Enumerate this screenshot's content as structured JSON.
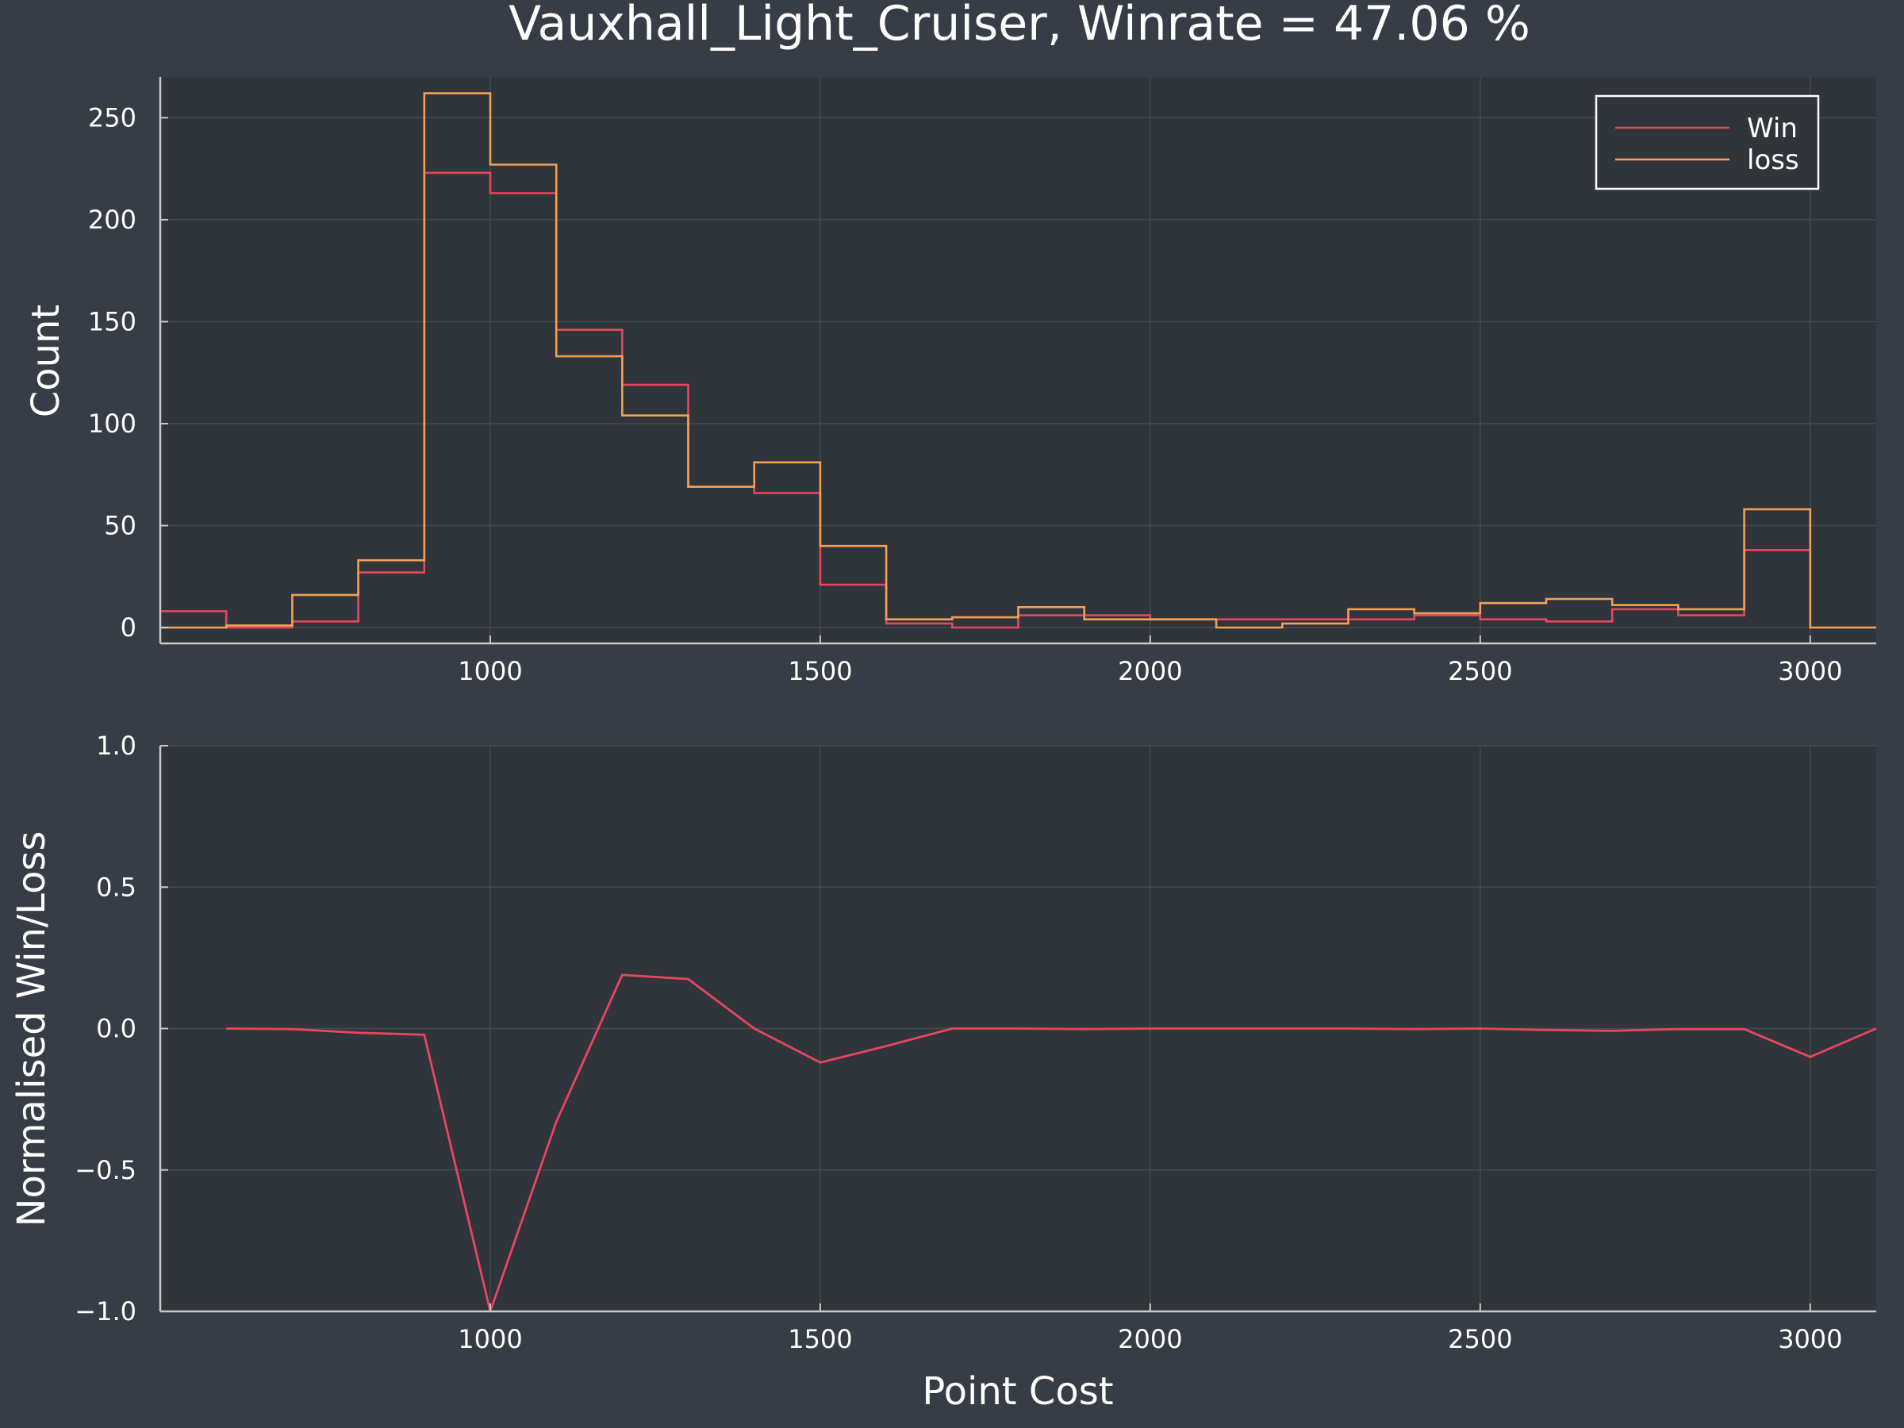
{
  "chart_data": [
    {
      "type": "histogram",
      "title": "Vauxhall_Light_Cruiser, Winrate = 47.06 %",
      "xlabel": "",
      "ylabel": "Count",
      "xlim": [
        500,
        3100
      ],
      "ylim": [
        0,
        270
      ],
      "xticks": [
        1000,
        1500,
        2000,
        2500,
        3000
      ],
      "yticks": [
        0,
        50,
        100,
        150,
        200,
        250
      ],
      "grid": true,
      "legend_position": "top-right",
      "bin_edges": [
        500,
        600,
        700,
        800,
        900,
        1000,
        1100,
        1200,
        1300,
        1400,
        1500,
        1600,
        1700,
        1800,
        1900,
        2000,
        2100,
        2200,
        2300,
        2400,
        2500,
        2600,
        2700,
        2800,
        2900,
        3000,
        3100
      ],
      "series": [
        {
          "name": "Win",
          "color": "#e8465f",
          "values": [
            8,
            0,
            3,
            27,
            223,
            213,
            146,
            119,
            69,
            66,
            21,
            2,
            0,
            6,
            6,
            4,
            4,
            4,
            4,
            6,
            4,
            3,
            9,
            6,
            38,
            0
          ]
        },
        {
          "name": "loss",
          "color": "#f2a154",
          "values": [
            0,
            1,
            16,
            33,
            262,
            227,
            133,
            104,
            69,
            81,
            40,
            4,
            5,
            10,
            4,
            4,
            0,
            2,
            9,
            7,
            12,
            14,
            11,
            9,
            58,
            0
          ]
        }
      ]
    },
    {
      "type": "line",
      "title": "",
      "xlabel": "Point Cost",
      "ylabel": "Normalised Win/Loss",
      "xlim": [
        500,
        3100
      ],
      "ylim": [
        -1.0,
        1.0
      ],
      "xticks": [
        1000,
        1500,
        2000,
        2500,
        3000
      ],
      "yticks": [
        -1.0,
        -0.5,
        0.0,
        0.5,
        1.0
      ],
      "ytick_labels": [
        "−1.0",
        "−0.5",
        "0.0",
        "0.5",
        "1.0"
      ],
      "grid": true,
      "series": [
        {
          "color": "#e8465f",
          "x": [
            600,
            700,
            800,
            900,
            1000,
            1100,
            1200,
            1300,
            1400,
            1500,
            1600,
            1700,
            1800,
            1900,
            2000,
            2100,
            2200,
            2300,
            2400,
            2500,
            2600,
            2700,
            2800,
            2900,
            3000,
            3100
          ],
          "y": [
            0.0,
            -0.002,
            -0.015,
            -0.022,
            -1.0,
            -0.33,
            0.19,
            0.175,
            0.0,
            -0.12,
            -0.062,
            0.0,
            0.0,
            -0.002,
            0.0,
            0.0,
            0.0,
            0.0,
            -0.002,
            0.0,
            -0.005,
            -0.008,
            -0.002,
            -0.002,
            -0.1,
            0.0
          ]
        }
      ]
    }
  ],
  "style": {
    "background": "#363d46",
    "plot_background": "#30343b",
    "grid_color": "#454b54",
    "axis_color": "#c8c8c8",
    "text_color": "#ffffff",
    "legend_border": "#ffffff"
  }
}
